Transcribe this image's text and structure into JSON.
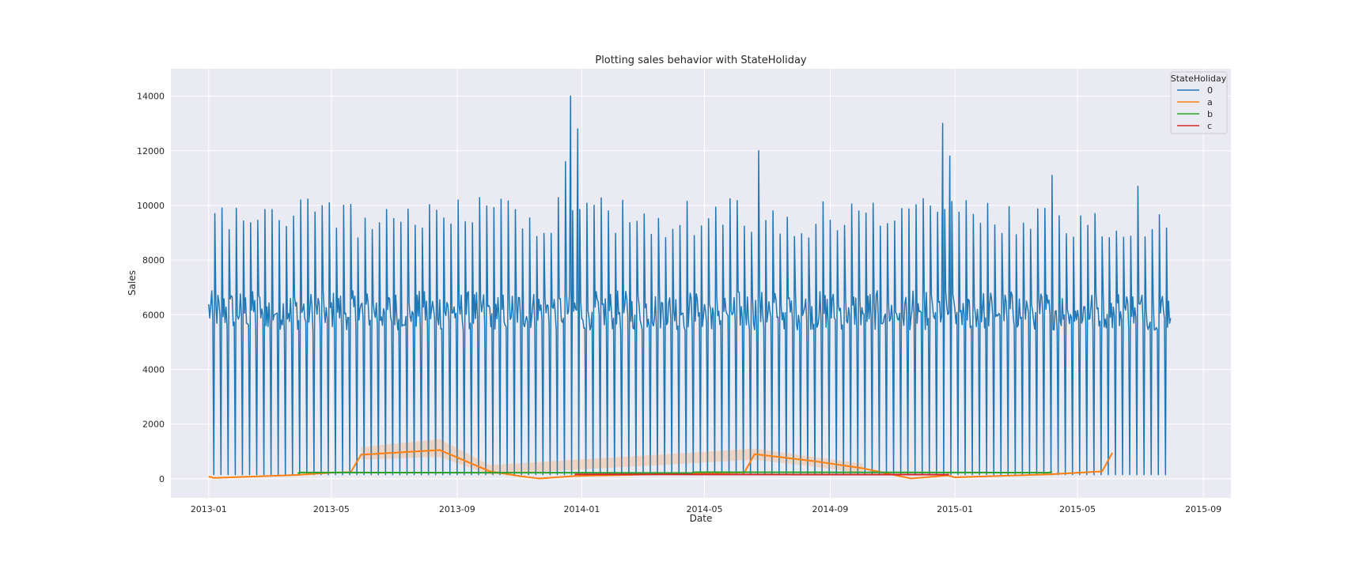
{
  "chart_data": {
    "type": "line",
    "title": "Plotting sales behavior with StateHoliday",
    "xlabel": "Date",
    "ylabel": "Sales",
    "x_ticks": [
      "2013-01",
      "2013-05",
      "2013-09",
      "2014-01",
      "2014-05",
      "2014-09",
      "2015-01",
      "2015-05",
      "2015-09"
    ],
    "y_ticks": [
      0,
      2000,
      4000,
      6000,
      8000,
      10000,
      12000,
      14000
    ],
    "xlim": [
      "2012-11-25",
      "2015-09-28"
    ],
    "ylim": [
      -700,
      15000
    ],
    "grid": true,
    "legend": {
      "title": "StateHoliday",
      "placement": "top-right",
      "entries": [
        "0",
        "a",
        "b",
        "c"
      ]
    },
    "series": [
      {
        "name": "0",
        "color": "#1f77b4",
        "pattern": "weekly",
        "start": "2013-01-01",
        "end": "2015-07-31",
        "typical_weekday_sales": [
          5200,
          7600
        ],
        "sunday_sales": 150,
        "peaks": [
          {
            "date": "2013-01-07",
            "value": 9700
          },
          {
            "date": "2013-04-01",
            "value": 10200
          },
          {
            "date": "2013-12-16",
            "value": 11600
          },
          {
            "date": "2013-12-21",
            "value": 14000
          },
          {
            "date": "2013-12-28",
            "value": 12800
          },
          {
            "date": "2014-06-23",
            "value": 12000
          },
          {
            "date": "2014-12-20",
            "value": 13000
          },
          {
            "date": "2014-12-27",
            "value": 11800
          },
          {
            "date": "2015-04-06",
            "value": 11100
          },
          {
            "date": "2015-06-29",
            "value": 10700
          }
        ]
      },
      {
        "name": "a",
        "color": "#ff7f0e",
        "points": [
          [
            "2013-01-01",
            80
          ],
          [
            "2013-01-06",
            30
          ],
          [
            "2013-03-29",
            140
          ],
          [
            "2013-05-01",
            220
          ],
          [
            "2013-05-20",
            240
          ],
          [
            "2013-05-30",
            880
          ],
          [
            "2013-08-15",
            1050
          ],
          [
            "2013-10-03",
            270
          ],
          [
            "2013-11-01",
            100
          ],
          [
            "2013-11-20",
            10
          ],
          [
            "2013-12-25",
            100
          ],
          [
            "2014-01-06",
            110
          ],
          [
            "2014-06-09",
            230
          ],
          [
            "2014-06-19",
            900
          ],
          [
            "2014-08-15",
            650
          ],
          [
            "2014-10-03",
            380
          ],
          [
            "2014-11-01",
            150
          ],
          [
            "2014-11-19",
            10
          ],
          [
            "2014-12-25",
            120
          ],
          [
            "2015-01-01",
            50
          ],
          [
            "2015-04-03",
            160
          ],
          [
            "2015-05-25",
            270
          ],
          [
            "2015-06-04",
            950
          ]
        ],
        "ci_band": [
          [
            "2013-05-30",
            700,
            1150
          ],
          [
            "2013-08-15",
            800,
            1450
          ],
          [
            "2013-10-03",
            150,
            500
          ],
          [
            "2014-06-19",
            700,
            1100
          ],
          [
            "2014-08-15",
            450,
            800
          ],
          [
            "2014-10-03",
            200,
            550
          ]
        ]
      },
      {
        "name": "b",
        "color": "#2ca02c",
        "points": [
          [
            "2013-03-29",
            200
          ],
          [
            "2013-04-01",
            230
          ],
          [
            "2013-12-26",
            220
          ],
          [
            "2014-04-18",
            210
          ],
          [
            "2014-04-21",
            240
          ],
          [
            "2014-12-26",
            230
          ],
          [
            "2015-04-03",
            220
          ],
          [
            "2015-04-06",
            260
          ]
        ]
      },
      {
        "name": "c",
        "color": "#d62728",
        "points": [
          [
            "2013-12-25",
            150
          ],
          [
            "2013-12-26",
            160
          ],
          [
            "2014-12-25",
            150
          ],
          [
            "2014-12-26",
            170
          ]
        ]
      }
    ]
  }
}
